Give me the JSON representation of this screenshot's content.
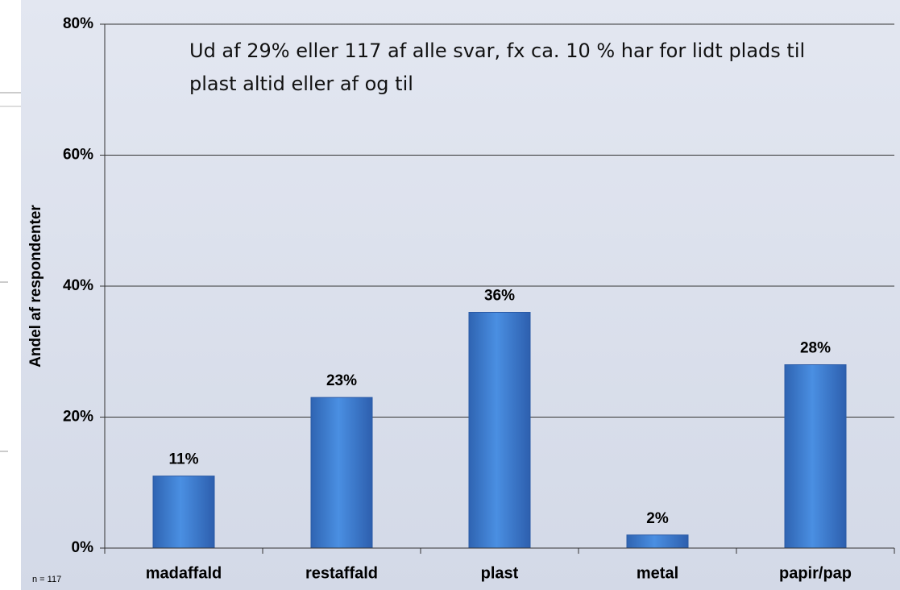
{
  "chart_data": {
    "type": "bar",
    "ylabel": "Andel af respondenter",
    "annotation": [
      "Ud af 29% eller 117 af alle svar, fx ca. 10 % har for lidt plads til",
      "plast altid eller af og til"
    ],
    "note": "n = 117",
    "categories": [
      "madaffald",
      "restaffald",
      "plast",
      "metal",
      "papir/pap"
    ],
    "values": [
      11,
      23,
      36,
      2,
      28
    ],
    "value_labels": [
      "11%",
      "23%",
      "36%",
      "2%",
      "28%"
    ],
    "color": "#3f7fd2",
    "ylim": [
      0,
      80
    ],
    "yticks": [
      {
        "value": 0,
        "label": "0%"
      },
      {
        "value": 20,
        "label": "20%"
      },
      {
        "value": 40,
        "label": "40%"
      },
      {
        "value": 60,
        "label": "60%"
      },
      {
        "value": 80,
        "label": "80%"
      }
    ],
    "grid": true
  }
}
